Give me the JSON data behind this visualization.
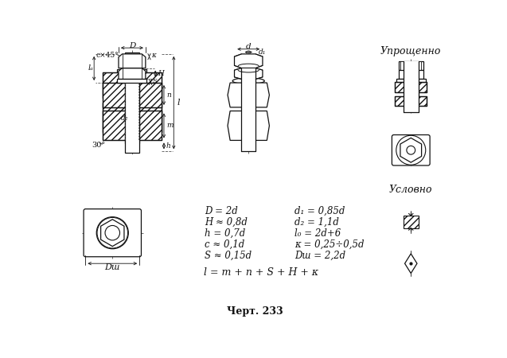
{
  "title": "Черт. 233",
  "label_upro": "Упрощенно",
  "label_usl": "Условно",
  "formulas_left": [
    "D = 2d",
    "H ≈ 0,8d",
    "h = 0,7d",
    "c ≈ 0,1d",
    "S ≈ 0,15d"
  ],
  "formulas_right": [
    "d₁ = 0,85d",
    "d₂ = 1,1d",
    "l₀ = 2d+6",
    "κ = 0,25÷0,5d",
    "Dш = 2,2d"
  ],
  "formula_l": "l = m + n + S + H + κ",
  "lc": "#1a1a1a"
}
